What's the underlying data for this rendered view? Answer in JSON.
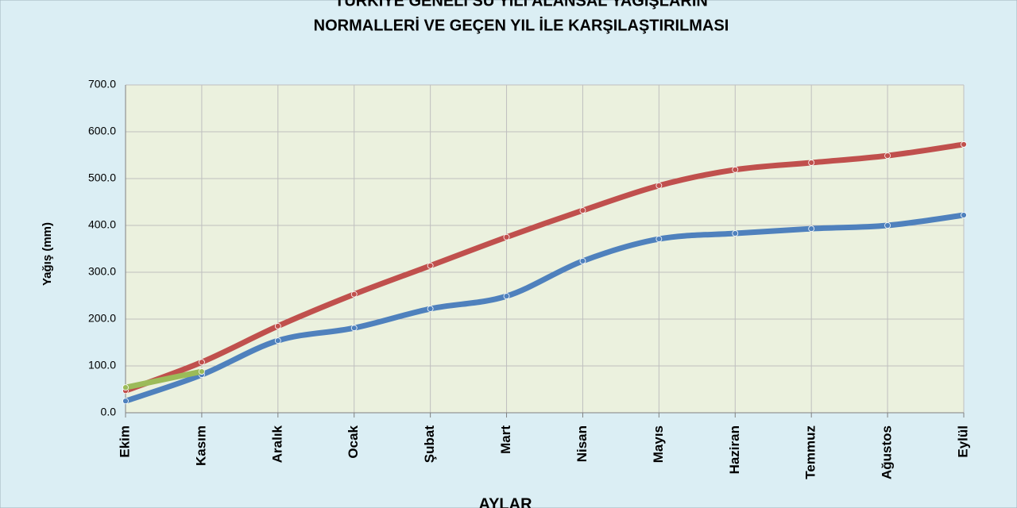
{
  "chart_data": {
    "type": "line",
    "title": "TÜRKİYE GENELİ SU YILI ALANSAL YAĞIŞLARIN",
    "subtitle": "NORMALLERİ VE GEÇEN YIL İLE KARŞILAŞTIRILMASI",
    "y_label": "Yağış (mm)",
    "x_label": "AYLAR",
    "categories": [
      "Ekim",
      "Kasım",
      "Aralık",
      "Ocak",
      "Şubat",
      "Mart",
      "Nisan",
      "Mayıs",
      "Haziran",
      "Temmuz",
      "Ağustos",
      "Eylül"
    ],
    "series": [
      {
        "color": "#c0504d",
        "values": [
          47,
          108,
          185,
          253,
          314,
          375,
          432,
          485,
          519,
          534,
          549,
          573
        ]
      },
      {
        "color": "#4f81bd",
        "values": [
          25,
          81,
          154,
          181,
          222,
          249,
          324,
          371,
          383,
          393,
          400,
          422
        ]
      },
      {
        "color": "#9bbb59",
        "values": [
          54,
          88,
          null,
          null,
          null,
          null,
          null,
          null,
          null,
          null,
          null,
          null
        ]
      }
    ],
    "ylim": [
      0,
      700
    ],
    "yticks": [
      {
        "value": 0,
        "label": "0.0"
      },
      {
        "value": 100,
        "label": "100.0"
      },
      {
        "value": 200,
        "label": "200.0"
      },
      {
        "value": 300,
        "label": "300.0"
      },
      {
        "value": 400,
        "label": "400.0"
      },
      {
        "value": 500,
        "label": "500.0"
      },
      {
        "value": 600,
        "label": "600.0"
      },
      {
        "value": 700,
        "label": "700.0"
      }
    ],
    "grid": true
  }
}
